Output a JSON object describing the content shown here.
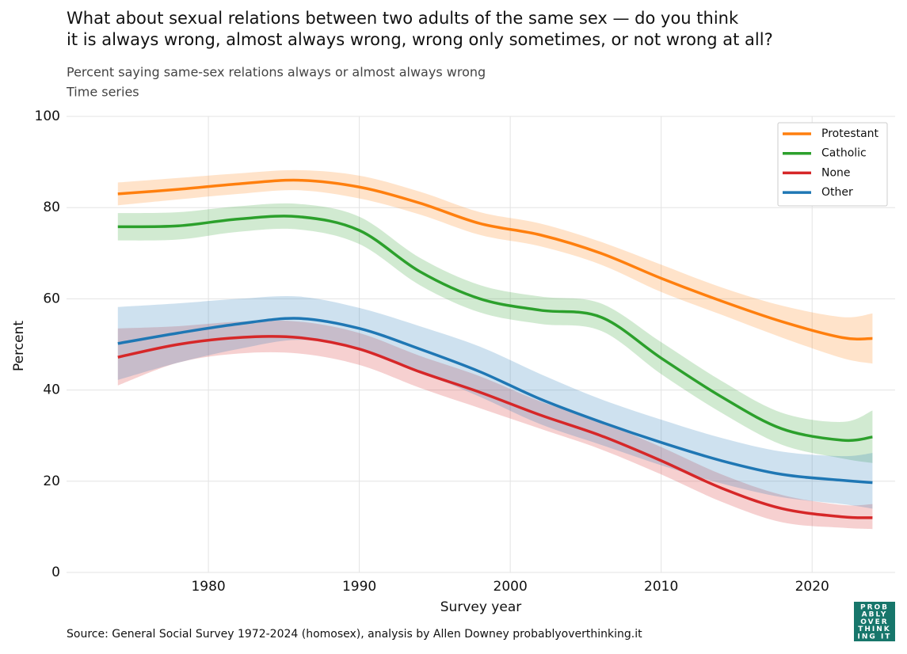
{
  "chart_data": {
    "type": "line",
    "title": [
      "What about sexual relations between two adults of the same sex — do you think",
      "it is always wrong, almost always wrong, wrong only sometimes, or not wrong at all?"
    ],
    "subtitle": [
      "Percent saying same-sex relations always or almost always wrong",
      "Time series"
    ],
    "x_label": "Survey year",
    "y_label": "Percent",
    "source": "Source: General Social Survey 1972-2024 (homosex), analysis by Allen Downey probablyoverthinking.it",
    "logo": [
      "PROB",
      "ABLY",
      "OVER",
      "THINK",
      "ING IT"
    ],
    "x": [
      1974,
      1978,
      1982,
      1986,
      1990,
      1994,
      1998,
      2002,
      2006,
      2010,
      2014,
      2018,
      2022,
      2024
    ],
    "series": [
      {
        "name": "Protestant",
        "color": "#ff7f0e",
        "values": [
          83,
          84,
          85.2,
          86,
          84.5,
          81,
          76.5,
          74,
          70,
          64.5,
          59.5,
          55,
          51.5,
          51.3
        ],
        "upper": [
          85.5,
          86.5,
          87.5,
          88.2,
          87,
          83.5,
          79,
          76.5,
          72.5,
          67.5,
          62.5,
          58.5,
          56,
          56.8
        ],
        "lower": [
          80.5,
          81.8,
          83,
          83.8,
          82,
          78.5,
          74,
          71.5,
          67.5,
          61.5,
          56.5,
          51.5,
          47,
          45.8
        ]
      },
      {
        "name": "Catholic",
        "color": "#2ca02c",
        "values": [
          75.8,
          76,
          77.5,
          78,
          75,
          66,
          60,
          57.5,
          56,
          47,
          38.5,
          31.5,
          29,
          29.7
        ],
        "upper": [
          78.8,
          79,
          80.3,
          80.8,
          78,
          69,
          63,
          60.5,
          59,
          50.5,
          42,
          35,
          33,
          35.5
        ],
        "lower": [
          72.8,
          73,
          74.7,
          75.2,
          72,
          63,
          57,
          54.5,
          53,
          43.5,
          35,
          28,
          25,
          24
        ]
      },
      {
        "name": "None",
        "color": "#d62728",
        "values": [
          47.2,
          50,
          51.5,
          51.5,
          49,
          44,
          39.5,
          34.5,
          30,
          24.5,
          18.5,
          14,
          12.2,
          12
        ],
        "upper": [
          53.5,
          54,
          55,
          55,
          52.5,
          47.5,
          43,
          37.5,
          33,
          27.5,
          21.5,
          17,
          14.8,
          15
        ],
        "lower": [
          41,
          46,
          48,
          48,
          45.5,
          40.5,
          36,
          31.5,
          27,
          21.5,
          15.5,
          11,
          9.8,
          9.5
        ]
      },
      {
        "name": "Other",
        "color": "#1f77b4",
        "values": [
          50.2,
          52.5,
          54.5,
          55.7,
          53.5,
          49,
          44,
          38,
          33,
          28.5,
          24.5,
          21.5,
          20.2,
          19.7
        ],
        "upper": [
          58.2,
          59,
          60,
          60.5,
          58,
          54,
          49.5,
          43.5,
          38,
          33.5,
          29.5,
          26.5,
          25.5,
          26.2
        ],
        "lower": [
          42.2,
          46,
          49,
          51,
          49,
          44,
          38.5,
          32.5,
          28,
          23.5,
          19.5,
          16.5,
          15,
          14
        ]
      }
    ],
    "xlim": [
      1970.6,
      2025.5
    ],
    "ylim": [
      0,
      100
    ],
    "xticks": [
      1980,
      1990,
      2000,
      2010,
      2020
    ],
    "yticks": [
      0,
      20,
      40,
      60,
      80,
      100
    ],
    "grid": true,
    "legend": "upper right"
  }
}
